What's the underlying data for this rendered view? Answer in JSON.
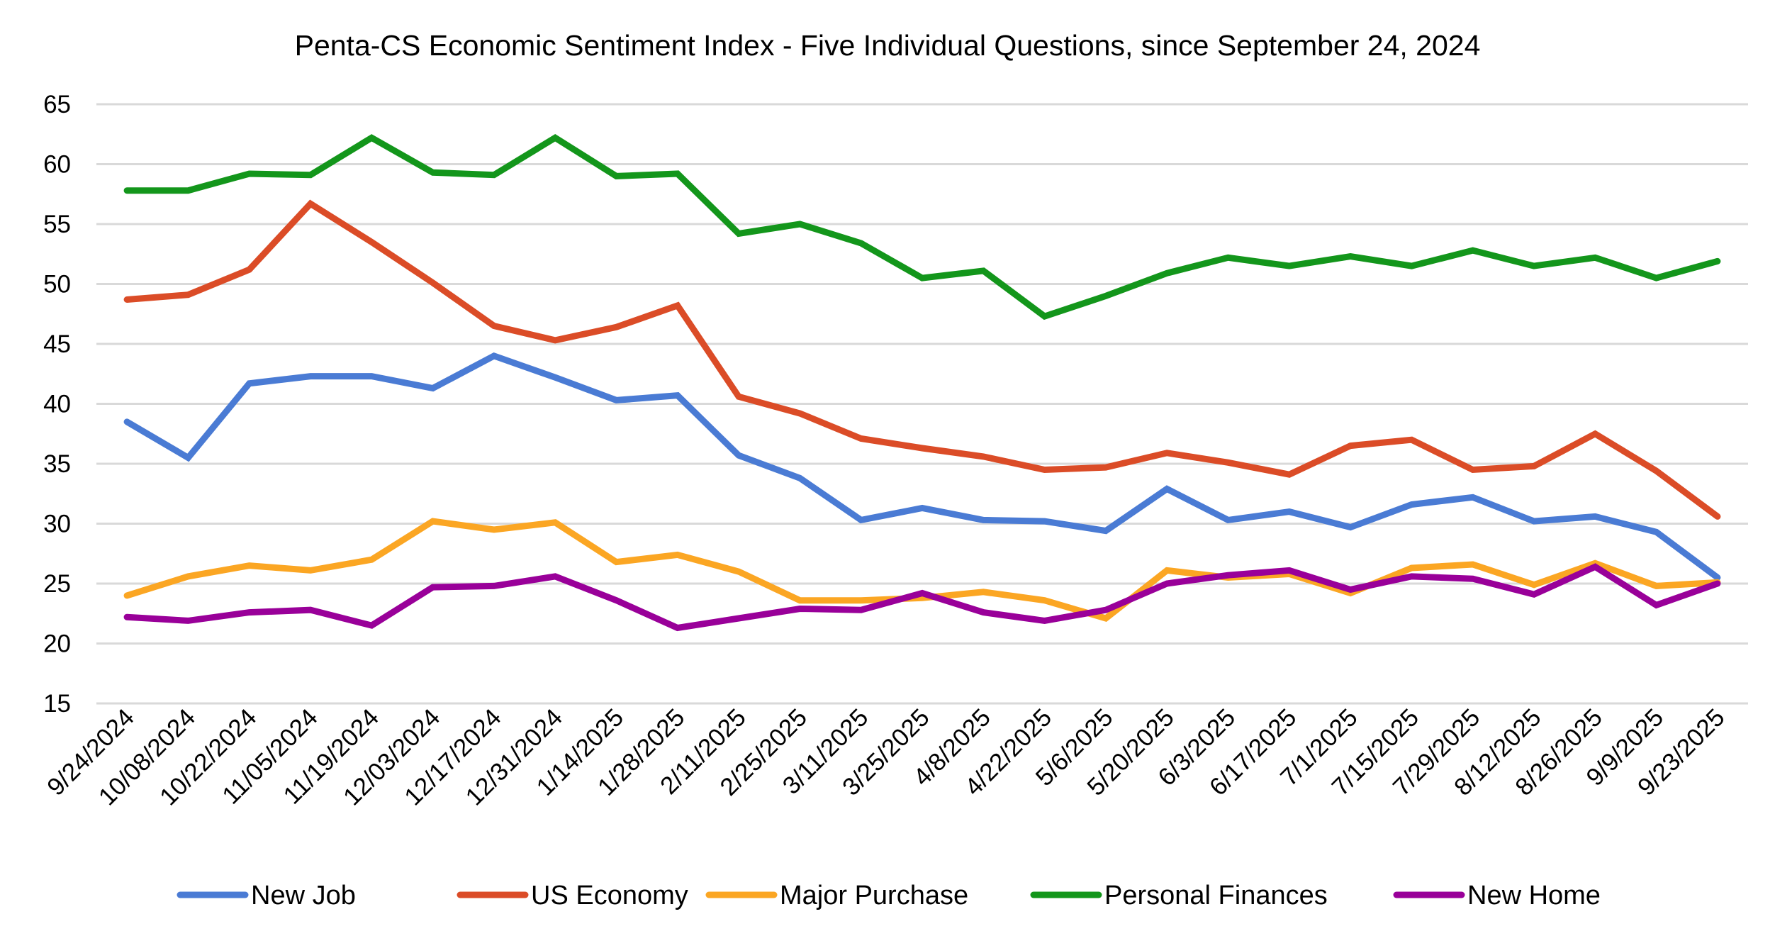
{
  "chart_data": {
    "type": "line",
    "title": "Penta-CS Economic Sentiment Index - Five Individual Questions, since September 24, 2024",
    "xlabel": "",
    "ylabel": "",
    "ylim": [
      15,
      65
    ],
    "yticks": [
      "15",
      "20",
      "25",
      "30",
      "35",
      "40",
      "45",
      "50",
      "55",
      "60",
      "65"
    ],
    "grid": true,
    "legend_position": "bottom",
    "categories": [
      "9/24/2024",
      "10/08/2024",
      "10/22/2024",
      "11/05/2024",
      "11/19/2024",
      "12/03/2024",
      "12/17/2024",
      "12/31/2024",
      "1/14/2025",
      "1/28/2025",
      "2/11/2025",
      "2/25/2025",
      "3/11/2025",
      "3/25/2025",
      "4/8/2025",
      "4/22/2025",
      "5/6/2025",
      "5/20/2025",
      "6/3/2025",
      "6/17/2025",
      "7/1/2025",
      "7/15/2025",
      "7/29/2025",
      "8/12/2025",
      "8/26/2025",
      "9/9/2025",
      "9/23/2025"
    ],
    "series": [
      {
        "name": "New Job",
        "color": "#4a7bd4",
        "values": [
          38.5,
          35.5,
          41.7,
          42.3,
          42.3,
          41.3,
          44.0,
          42.2,
          40.3,
          40.7,
          35.7,
          33.8,
          30.3,
          31.3,
          30.3,
          30.2,
          29.4,
          32.9,
          30.3,
          31.0,
          29.7,
          31.6,
          32.2,
          30.2,
          30.6,
          29.3,
          25.5
        ]
      },
      {
        "name": "US Economy",
        "color": "#db4c27",
        "values": [
          48.7,
          49.1,
          51.2,
          56.7,
          53.5,
          50.1,
          46.5,
          45.3,
          46.4,
          48.2,
          40.6,
          39.2,
          37.1,
          36.3,
          35.6,
          34.5,
          34.7,
          35.9,
          35.1,
          34.1,
          36.5,
          37.0,
          34.5,
          34.8,
          37.5,
          34.4,
          30.6
        ]
      },
      {
        "name": "Major Purchase",
        "color": "#fba623",
        "values": [
          24.0,
          25.6,
          26.5,
          26.1,
          27.0,
          30.2,
          29.5,
          30.1,
          26.8,
          27.4,
          26.0,
          23.6,
          23.6,
          23.8,
          24.3,
          23.6,
          22.1,
          26.1,
          25.5,
          25.8,
          24.2,
          26.3,
          26.6,
          24.9,
          26.7,
          24.8,
          25.1
        ]
      },
      {
        "name": "Personal Finances",
        "color": "#13961b",
        "values": [
          57.8,
          57.8,
          59.2,
          59.1,
          62.2,
          59.3,
          59.1,
          62.2,
          59.0,
          59.2,
          54.2,
          55.0,
          53.4,
          50.5,
          51.1,
          47.3,
          49.0,
          50.9,
          52.2,
          51.5,
          52.3,
          51.5,
          52.8,
          51.5,
          52.2,
          50.5,
          51.9
        ]
      },
      {
        "name": "New Home",
        "color": "#990099",
        "values": [
          22.2,
          21.9,
          22.6,
          22.8,
          21.5,
          24.7,
          24.8,
          25.6,
          23.6,
          21.3,
          22.1,
          22.9,
          22.8,
          24.2,
          22.6,
          21.9,
          22.8,
          25.0,
          25.7,
          26.1,
          24.5,
          25.6,
          25.4,
          24.1,
          26.4,
          23.2,
          25.0
        ]
      }
    ]
  }
}
